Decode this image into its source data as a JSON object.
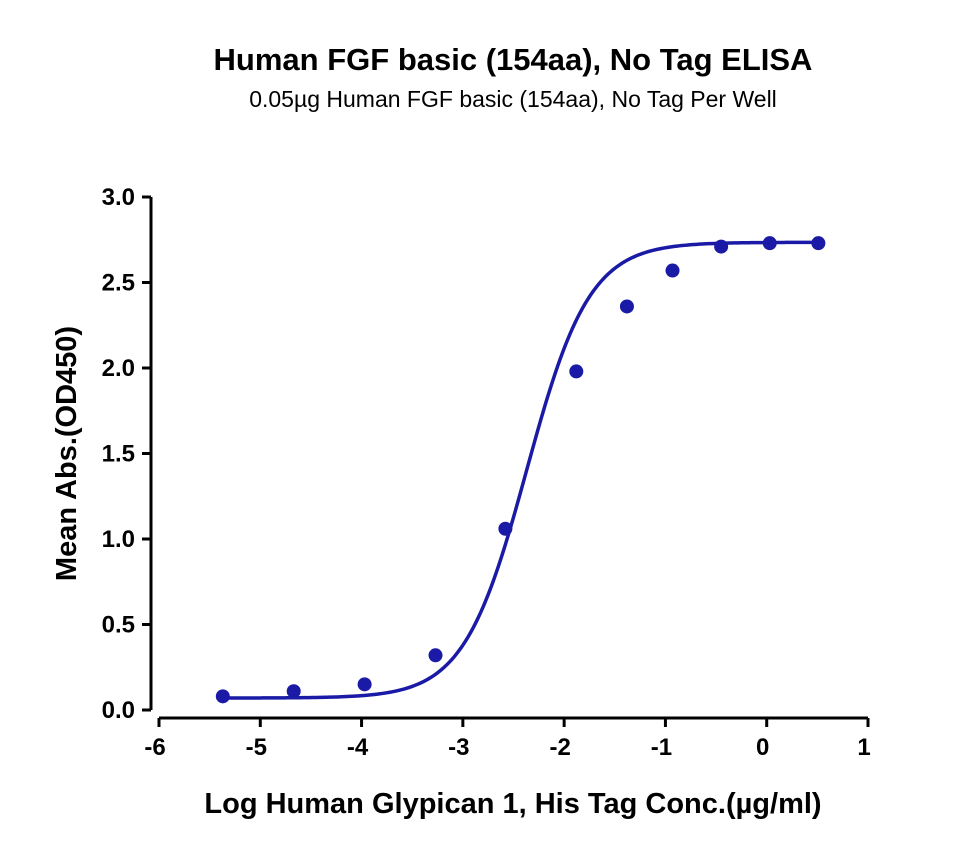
{
  "chart_data": {
    "type": "scatter",
    "title": "Human FGF basic (154aa), No Tag ELISA",
    "subtitle": "0.05µg Human FGF basic (154aa), No Tag Per Well",
    "xlabel": "Log Human Glypican 1, His Tag Conc.(µg/ml)",
    "ylabel": "Mean Abs.(OD450)",
    "xlim": [
      -6,
      1
    ],
    "ylim": [
      0,
      3
    ],
    "x_ticks": [
      -6,
      -5,
      -4,
      -3,
      -2,
      -1,
      0,
      1
    ],
    "y_ticks": [
      0.0,
      0.5,
      1.0,
      1.5,
      2.0,
      2.5,
      3.0
    ],
    "x_tick_labels": [
      "-6",
      "-5",
      "-4",
      "-3",
      "-2",
      "-1",
      "0",
      "1"
    ],
    "y_tick_labels": [
      "0.0",
      "0.5",
      "1.0",
      "1.5",
      "2.0",
      "2.5",
      "3.0"
    ],
    "grid": false,
    "legend": "none",
    "series": [
      {
        "color": "#1a1aa6",
        "points": [
          {
            "x": -5.37,
            "y": 0.08
          },
          {
            "x": -4.67,
            "y": 0.11
          },
          {
            "x": -3.97,
            "y": 0.15
          },
          {
            "x": -3.27,
            "y": 0.32
          },
          {
            "x": -2.58,
            "y": 1.06
          },
          {
            "x": -1.88,
            "y": 1.98
          },
          {
            "x": -1.38,
            "y": 2.36
          },
          {
            "x": -0.93,
            "y": 2.57
          },
          {
            "x": -0.45,
            "y": 2.71
          },
          {
            "x": 0.03,
            "y": 2.73
          },
          {
            "x": 0.51,
            "y": 2.73
          }
        ],
        "fit": {
          "type": "4PL",
          "bottom": 0.07,
          "top": 2.735,
          "log_ec50": -2.37,
          "hill_slope": 1.4
        }
      }
    ]
  }
}
